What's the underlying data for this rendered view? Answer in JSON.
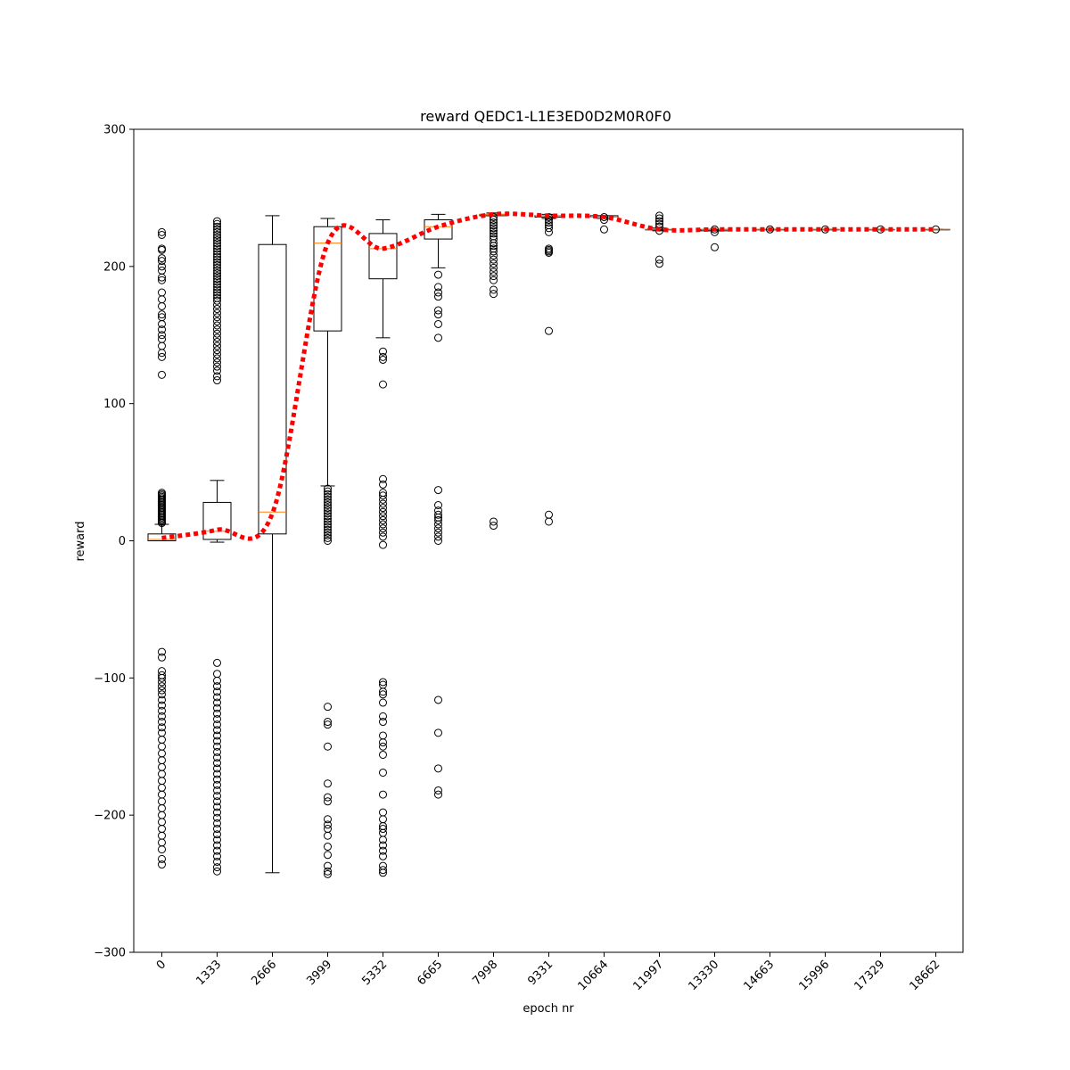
{
  "chart_data": {
    "type": "box",
    "title": "reward QEDC1-L1E3ED0D2M0R0F0",
    "xlabel": "epoch nr",
    "ylabel": "reward",
    "ylim": [
      -300,
      300
    ],
    "yticks": [
      -300,
      -200,
      -100,
      0,
      100,
      200,
      300
    ],
    "categories": [
      "0",
      "1333",
      "2666",
      "3999",
      "5332",
      "6665",
      "7998",
      "9331",
      "10664",
      "11997",
      "13330",
      "14663",
      "15996",
      "17329",
      "18662"
    ],
    "colors": {
      "box": "#000000",
      "median": "#ff7f0e",
      "mean_line": "#ff0000"
    },
    "mean_line": [
      2,
      8,
      20,
      217,
      213,
      229,
      238,
      237,
      236,
      227,
      227,
      227,
      227,
      227,
      227
    ],
    "boxes": [
      {
        "whislo": 0,
        "q1": 0,
        "med": 1,
        "q3": 5,
        "whishi": 12,
        "fliers": [
          35,
          34,
          33,
          32,
          31,
          30,
          29,
          28,
          27,
          26,
          25,
          24,
          23,
          22,
          21,
          20,
          19,
          18,
          17,
          16,
          15,
          14,
          13,
          13,
          225,
          223,
          213,
          212,
          206,
          204,
          200,
          197,
          192,
          190,
          181,
          176,
          171,
          165,
          163,
          158,
          154,
          150,
          147,
          142,
          137,
          134,
          121,
          -81,
          -85,
          -95,
          -98,
          -100,
          -103,
          -106,
          -109,
          -112,
          -116,
          -120,
          -124,
          -128,
          -132,
          -136,
          -140,
          -145,
          -150,
          -155,
          -160,
          -165,
          -170,
          -175,
          -180,
          -185,
          -190,
          -195,
          -200,
          -205,
          -210,
          -215,
          -220,
          -225,
          -232,
          -236
        ]
      },
      {
        "whislo": -1,
        "q1": 1,
        "med": 7,
        "q3": 28,
        "whishi": 44,
        "fliers": [
          233,
          231,
          229,
          227,
          225,
          223,
          221,
          219,
          217,
          215,
          213,
          211,
          209,
          207,
          205,
          203,
          201,
          199,
          197,
          195,
          193,
          191,
          189,
          187,
          185,
          183,
          181,
          179,
          177,
          175,
          172,
          169,
          166,
          163,
          160,
          157,
          154,
          151,
          148,
          145,
          142,
          139,
          136,
          133,
          130,
          127,
          124,
          120,
          117,
          -89,
          -97,
          -102,
          -106,
          -110,
          -114,
          -118,
          -122,
          -126,
          -130,
          -134,
          -138,
          -142,
          -146,
          -150,
          -154,
          -158,
          -162,
          -166,
          -170,
          -174,
          -178,
          -182,
          -186,
          -190,
          -194,
          -198,
          -202,
          -206,
          -210,
          -214,
          -218,
          -222,
          -226,
          -230,
          -234,
          -238,
          -241
        ]
      },
      {
        "whislo": -242,
        "q1": 5,
        "med": 21,
        "q3": 216,
        "whishi": 237,
        "fliers": []
      },
      {
        "whislo": 40,
        "q1": 153,
        "med": 217,
        "q3": 229,
        "whishi": 235,
        "fliers": [
          38,
          36,
          34,
          32,
          30,
          28,
          26,
          24,
          22,
          20,
          18,
          16,
          14,
          12,
          10,
          8,
          6,
          4,
          2,
          0,
          -121,
          -132,
          -134,
          -150,
          -177,
          -187,
          -190,
          -203,
          -207,
          -210,
          -215,
          -223,
          -229,
          -237,
          -241,
          -243
        ]
      },
      {
        "whislo": 148,
        "q1": 191,
        "med": 213,
        "q3": 224,
        "whishi": 234,
        "fliers": [
          138,
          134,
          132,
          114,
          45,
          41,
          35,
          33,
          30,
          27,
          24,
          21,
          18,
          15,
          12,
          9,
          6,
          3,
          -3,
          -103,
          -105,
          -110,
          -112,
          -118,
          -128,
          -132,
          -142,
          -147,
          -150,
          -156,
          -169,
          -185,
          -198,
          -203,
          -208,
          -210,
          -213,
          -218,
          -222,
          -226,
          -230,
          -237,
          -240,
          -242
        ]
      },
      {
        "whislo": 199,
        "q1": 220,
        "med": 229,
        "q3": 234,
        "whishi": 238,
        "fliers": [
          194,
          185,
          181,
          178,
          168,
          165,
          158,
          148,
          37,
          26,
          22,
          19,
          17,
          15,
          12,
          9,
          6,
          3,
          0,
          -116,
          -140,
          -166,
          -182,
          -185
        ]
      },
      {
        "whislo": 237,
        "q1": 237,
        "med": 238,
        "q3": 238,
        "whishi": 239,
        "fliers": [
          236,
          234,
          232,
          230,
          228,
          226,
          224,
          222,
          220,
          217,
          215,
          213,
          211,
          208,
          205,
          202,
          199,
          196,
          193,
          190,
          183,
          180,
          14,
          11
        ]
      },
      {
        "whislo": 235,
        "q1": 236,
        "med": 237,
        "q3": 237,
        "whishi": 238,
        "fliers": [
          236,
          234,
          232,
          230,
          228,
          225,
          213,
          212,
          211,
          210,
          153,
          19,
          14
        ]
      },
      {
        "whislo": 235,
        "q1": 236,
        "med": 236,
        "q3": 237,
        "whishi": 237,
        "fliers": [
          236,
          234,
          227
        ]
      },
      {
        "whislo": 226,
        "q1": 227,
        "med": 227,
        "q3": 227,
        "whishi": 228,
        "fliers": [
          237,
          235,
          233,
          231,
          229,
          226,
          205,
          202
        ]
      },
      {
        "whislo": 226,
        "q1": 226,
        "med": 227,
        "q3": 227,
        "whishi": 227,
        "fliers": [
          227,
          225,
          214
        ]
      },
      {
        "whislo": 227,
        "q1": 227,
        "med": 227,
        "q3": 227,
        "whishi": 227,
        "fliers": [
          227
        ]
      },
      {
        "whislo": 227,
        "q1": 227,
        "med": 227,
        "q3": 227,
        "whishi": 227,
        "fliers": [
          227
        ]
      },
      {
        "whislo": 227,
        "q1": 227,
        "med": 227,
        "q3": 227,
        "whishi": 227,
        "fliers": [
          227
        ]
      },
      {
        "whislo": 227,
        "q1": 227,
        "med": 227,
        "q3": 227,
        "whishi": 227,
        "fliers": [
          227
        ]
      }
    ]
  }
}
